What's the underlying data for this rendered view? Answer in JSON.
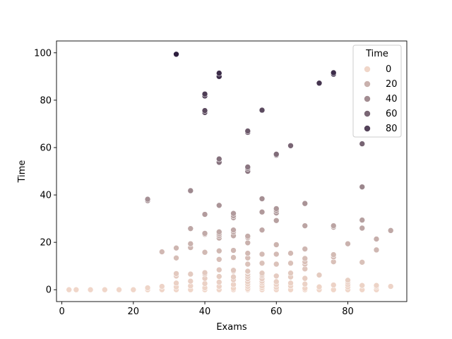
{
  "chart_data": {
    "type": "scatter",
    "xlabel": "Exams",
    "ylabel": "Time",
    "xlim": [
      -1.5,
      96.5
    ],
    "ylim": [
      -5,
      105
    ],
    "xticks": [
      0,
      20,
      40,
      60,
      80
    ],
    "yticks": [
      0,
      20,
      40,
      60,
      80,
      100
    ],
    "grid": false,
    "hue": "Time",
    "legend": {
      "title": "Time",
      "placement": "top-right",
      "entries": [
        "0",
        "20",
        "40",
        "60",
        "80"
      ],
      "values": [
        0,
        20,
        40,
        60,
        80
      ]
    },
    "color_low": "#f0d6c9",
    "color_high": "#2d1e3e",
    "points": [
      [
        2,
        0
      ],
      [
        4,
        0
      ],
      [
        8,
        0
      ],
      [
        12,
        0
      ],
      [
        16,
        0
      ],
      [
        20,
        0
      ],
      [
        24,
        0
      ],
      [
        24,
        0.8
      ],
      [
        28,
        0
      ],
      [
        28,
        1.4
      ],
      [
        32,
        0
      ],
      [
        32,
        1.2
      ],
      [
        32,
        2.8
      ],
      [
        32,
        5.8
      ],
      [
        32,
        6.8
      ],
      [
        36,
        0
      ],
      [
        36,
        1.6
      ],
      [
        36,
        3.6
      ],
      [
        36,
        6.6
      ],
      [
        40,
        0
      ],
      [
        40,
        0.8
      ],
      [
        40,
        2.6
      ],
      [
        40,
        4.8
      ],
      [
        40,
        6.6
      ],
      [
        40,
        7.2
      ],
      [
        44,
        0
      ],
      [
        44,
        1.4
      ],
      [
        44,
        3.2
      ],
      [
        44,
        5.6
      ],
      [
        44,
        8.4
      ],
      [
        48,
        0
      ],
      [
        48,
        0.6
      ],
      [
        48,
        2.2
      ],
      [
        48,
        4.2
      ],
      [
        48,
        5.4
      ],
      [
        48,
        7.8
      ],
      [
        48,
        8.2
      ],
      [
        52,
        0
      ],
      [
        52,
        0.4
      ],
      [
        52,
        1.4
      ],
      [
        52,
        2.4
      ],
      [
        52,
        3.4
      ],
      [
        52,
        4.6
      ],
      [
        52,
        5.6
      ],
      [
        52,
        6.6
      ],
      [
        52,
        7.6
      ],
      [
        52,
        7.8
      ],
      [
        56,
        0
      ],
      [
        56,
        0.8
      ],
      [
        56,
        1.6
      ],
      [
        56,
        2.8
      ],
      [
        56,
        3.6
      ],
      [
        56,
        4.6
      ],
      [
        56,
        5.8
      ],
      [
        56,
        6.4
      ],
      [
        56,
        7.0
      ],
      [
        60,
        0
      ],
      [
        60,
        1.0
      ],
      [
        60,
        2.2
      ],
      [
        60,
        3.4
      ],
      [
        60,
        5.8
      ],
      [
        64,
        0
      ],
      [
        64,
        1.6
      ],
      [
        64,
        2.8
      ],
      [
        64,
        5.4
      ],
      [
        64,
        7.0
      ],
      [
        68,
        0
      ],
      [
        68,
        0.6
      ],
      [
        68,
        2.4
      ],
      [
        68,
        4.8
      ],
      [
        72,
        0
      ],
      [
        72,
        1.2
      ],
      [
        72,
        6.2
      ],
      [
        76,
        0
      ],
      [
        76,
        2.0
      ],
      [
        80,
        0
      ],
      [
        80,
        1.2
      ],
      [
        80,
        2.2
      ],
      [
        80,
        3.2
      ],
      [
        80,
        4.0
      ],
      [
        84,
        0
      ],
      [
        84,
        1.8
      ],
      [
        88,
        0
      ],
      [
        88,
        1.2
      ],
      [
        88,
        1.8
      ],
      [
        92,
        1.4
      ],
      [
        28,
        16
      ],
      [
        32,
        13.4
      ],
      [
        32,
        17.6
      ],
      [
        36,
        17.8
      ],
      [
        36,
        19.4
      ],
      [
        40,
        15.8
      ],
      [
        44,
        12.8
      ],
      [
        44,
        16.4
      ],
      [
        48,
        13.6
      ],
      [
        48,
        16.6
      ],
      [
        52,
        10.8
      ],
      [
        52,
        13.4
      ],
      [
        52,
        15.4
      ],
      [
        52,
        19.8
      ],
      [
        56,
        11.2
      ],
      [
        56,
        15.0
      ],
      [
        60,
        10.8
      ],
      [
        60,
        15.0
      ],
      [
        60,
        19.0
      ],
      [
        64,
        11.2
      ],
      [
        64,
        15.4
      ],
      [
        68,
        8.8
      ],
      [
        68,
        10.8
      ],
      [
        68,
        11.8
      ],
      [
        68,
        13.2
      ],
      [
        68,
        17.2
      ],
      [
        76,
        11.8
      ],
      [
        76,
        13.8
      ],
      [
        76,
        14.8
      ],
      [
        80,
        19.4
      ],
      [
        84,
        11.6
      ],
      [
        88,
        16.8
      ],
      [
        88,
        21.4
      ],
      [
        92,
        25
      ],
      [
        24,
        37.6
      ],
      [
        24,
        38.2
      ],
      [
        36,
        25.8
      ],
      [
        36,
        41.8
      ],
      [
        40,
        23.4
      ],
      [
        40,
        23.8
      ],
      [
        40,
        31.8
      ],
      [
        44,
        21.8
      ],
      [
        44,
        22.8
      ],
      [
        44,
        23.6
      ],
      [
        44,
        24.4
      ],
      [
        44,
        35.6
      ],
      [
        48,
        22.8
      ],
      [
        48,
        24.4
      ],
      [
        48,
        25.2
      ],
      [
        48,
        30.4
      ],
      [
        48,
        31.2
      ],
      [
        48,
        32.2
      ],
      [
        52,
        22.0
      ],
      [
        52,
        22.6
      ],
      [
        56,
        25.2
      ],
      [
        56,
        32.8
      ],
      [
        56,
        38.4
      ],
      [
        60,
        29.2
      ],
      [
        60,
        32.4
      ],
      [
        60,
        33.4
      ],
      [
        60,
        34.2
      ],
      [
        68,
        27.0
      ],
      [
        68,
        36.4
      ],
      [
        76,
        26.4
      ],
      [
        76,
        27.0
      ],
      [
        84,
        26.0
      ],
      [
        84,
        29.4
      ],
      [
        84,
        43.4
      ],
      [
        44,
        53.8
      ],
      [
        44,
        55.2
      ],
      [
        52,
        50.0
      ],
      [
        52,
        51.2
      ],
      [
        52,
        51.8
      ],
      [
        60,
        56.8
      ],
      [
        60,
        57.2
      ],
      [
        64,
        60.8
      ],
      [
        84,
        61.6
      ],
      [
        52,
        66.4
      ],
      [
        52,
        67.0
      ],
      [
        40,
        74.8
      ],
      [
        40,
        75.6
      ],
      [
        40,
        81.8
      ],
      [
        40,
        82.6
      ],
      [
        56,
        75.8
      ],
      [
        44,
        90.0
      ],
      [
        44,
        91.4
      ],
      [
        72,
        87.2
      ],
      [
        76,
        91.0
      ],
      [
        76,
        91.6
      ],
      [
        32,
        99.4
      ]
    ]
  }
}
